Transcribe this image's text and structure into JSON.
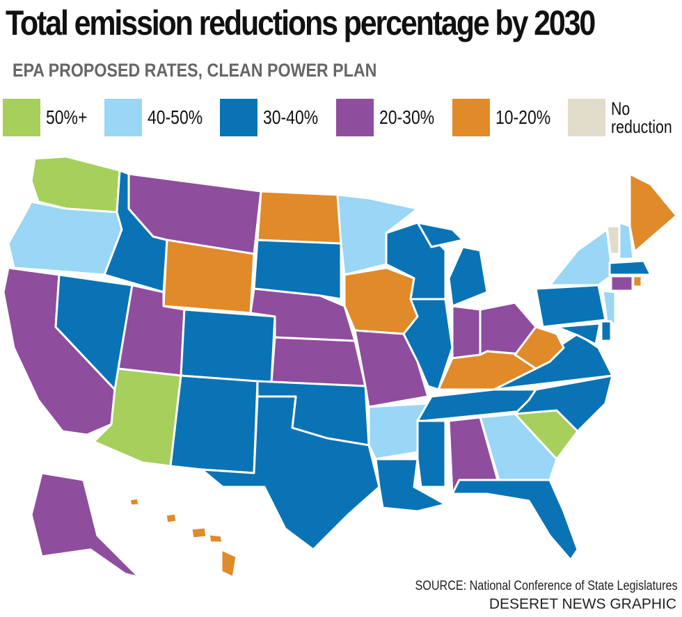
{
  "title": "Total emission reductions percentage by 2030",
  "subtitle": "EPA PROPOSED RATES, CLEAN POWER PLAN",
  "legend": [
    {
      "key": "c50",
      "label": "50%+",
      "color": "#a6cf5b"
    },
    {
      "key": "c40",
      "label": "40-50%",
      "color": "#9ad6f5"
    },
    {
      "key": "c30",
      "label": "30-40%",
      "color": "#0a73b5"
    },
    {
      "key": "c20",
      "label": "20-30%",
      "color": "#8f4d9e"
    },
    {
      "key": "c10",
      "label": "10-20%",
      "color": "#e08a2a"
    },
    {
      "key": "c0",
      "label": "No reduction",
      "color": "#e2dccb"
    }
  ],
  "states": {
    "WA": "c50",
    "AZ": "c50",
    "SC": "c50",
    "OR": "c40",
    "MN": "c40",
    "AR": "c40",
    "GA": "c40",
    "NY": "c40",
    "NH": "c40",
    "NJ": "c40",
    "ID": "c30",
    "NV": "c30",
    "SD": "c30",
    "CO": "c30",
    "NM": "c30",
    "TX": "c30",
    "OK": "c30",
    "LA": "c30",
    "MS": "c30",
    "WI": "c30",
    "MI": "c30",
    "IL": "c30",
    "TN": "c30",
    "NC": "c30",
    "VA": "c30",
    "FL": "c30",
    "PA": "c30",
    "MD": "c30",
    "MA": "c30",
    "DE": "c30",
    "CA": "c20",
    "MT": "c20",
    "UT": "c20",
    "NE": "c20",
    "KS": "c20",
    "MO": "c20",
    "IN": "c20",
    "OH": "c20",
    "AL": "c20",
    "AK": "c20",
    "CT": "c20",
    "ND": "c10",
    "WY": "c10",
    "IA": "c10",
    "KY": "c10",
    "WV": "c10",
    "ME": "c10",
    "HI": "c10",
    "RI": "c10",
    "VT": "c0"
  },
  "source": "SOURCE: National Conference of State Legislatures",
  "credit": "DESERET NEWS GRAPHIC"
}
